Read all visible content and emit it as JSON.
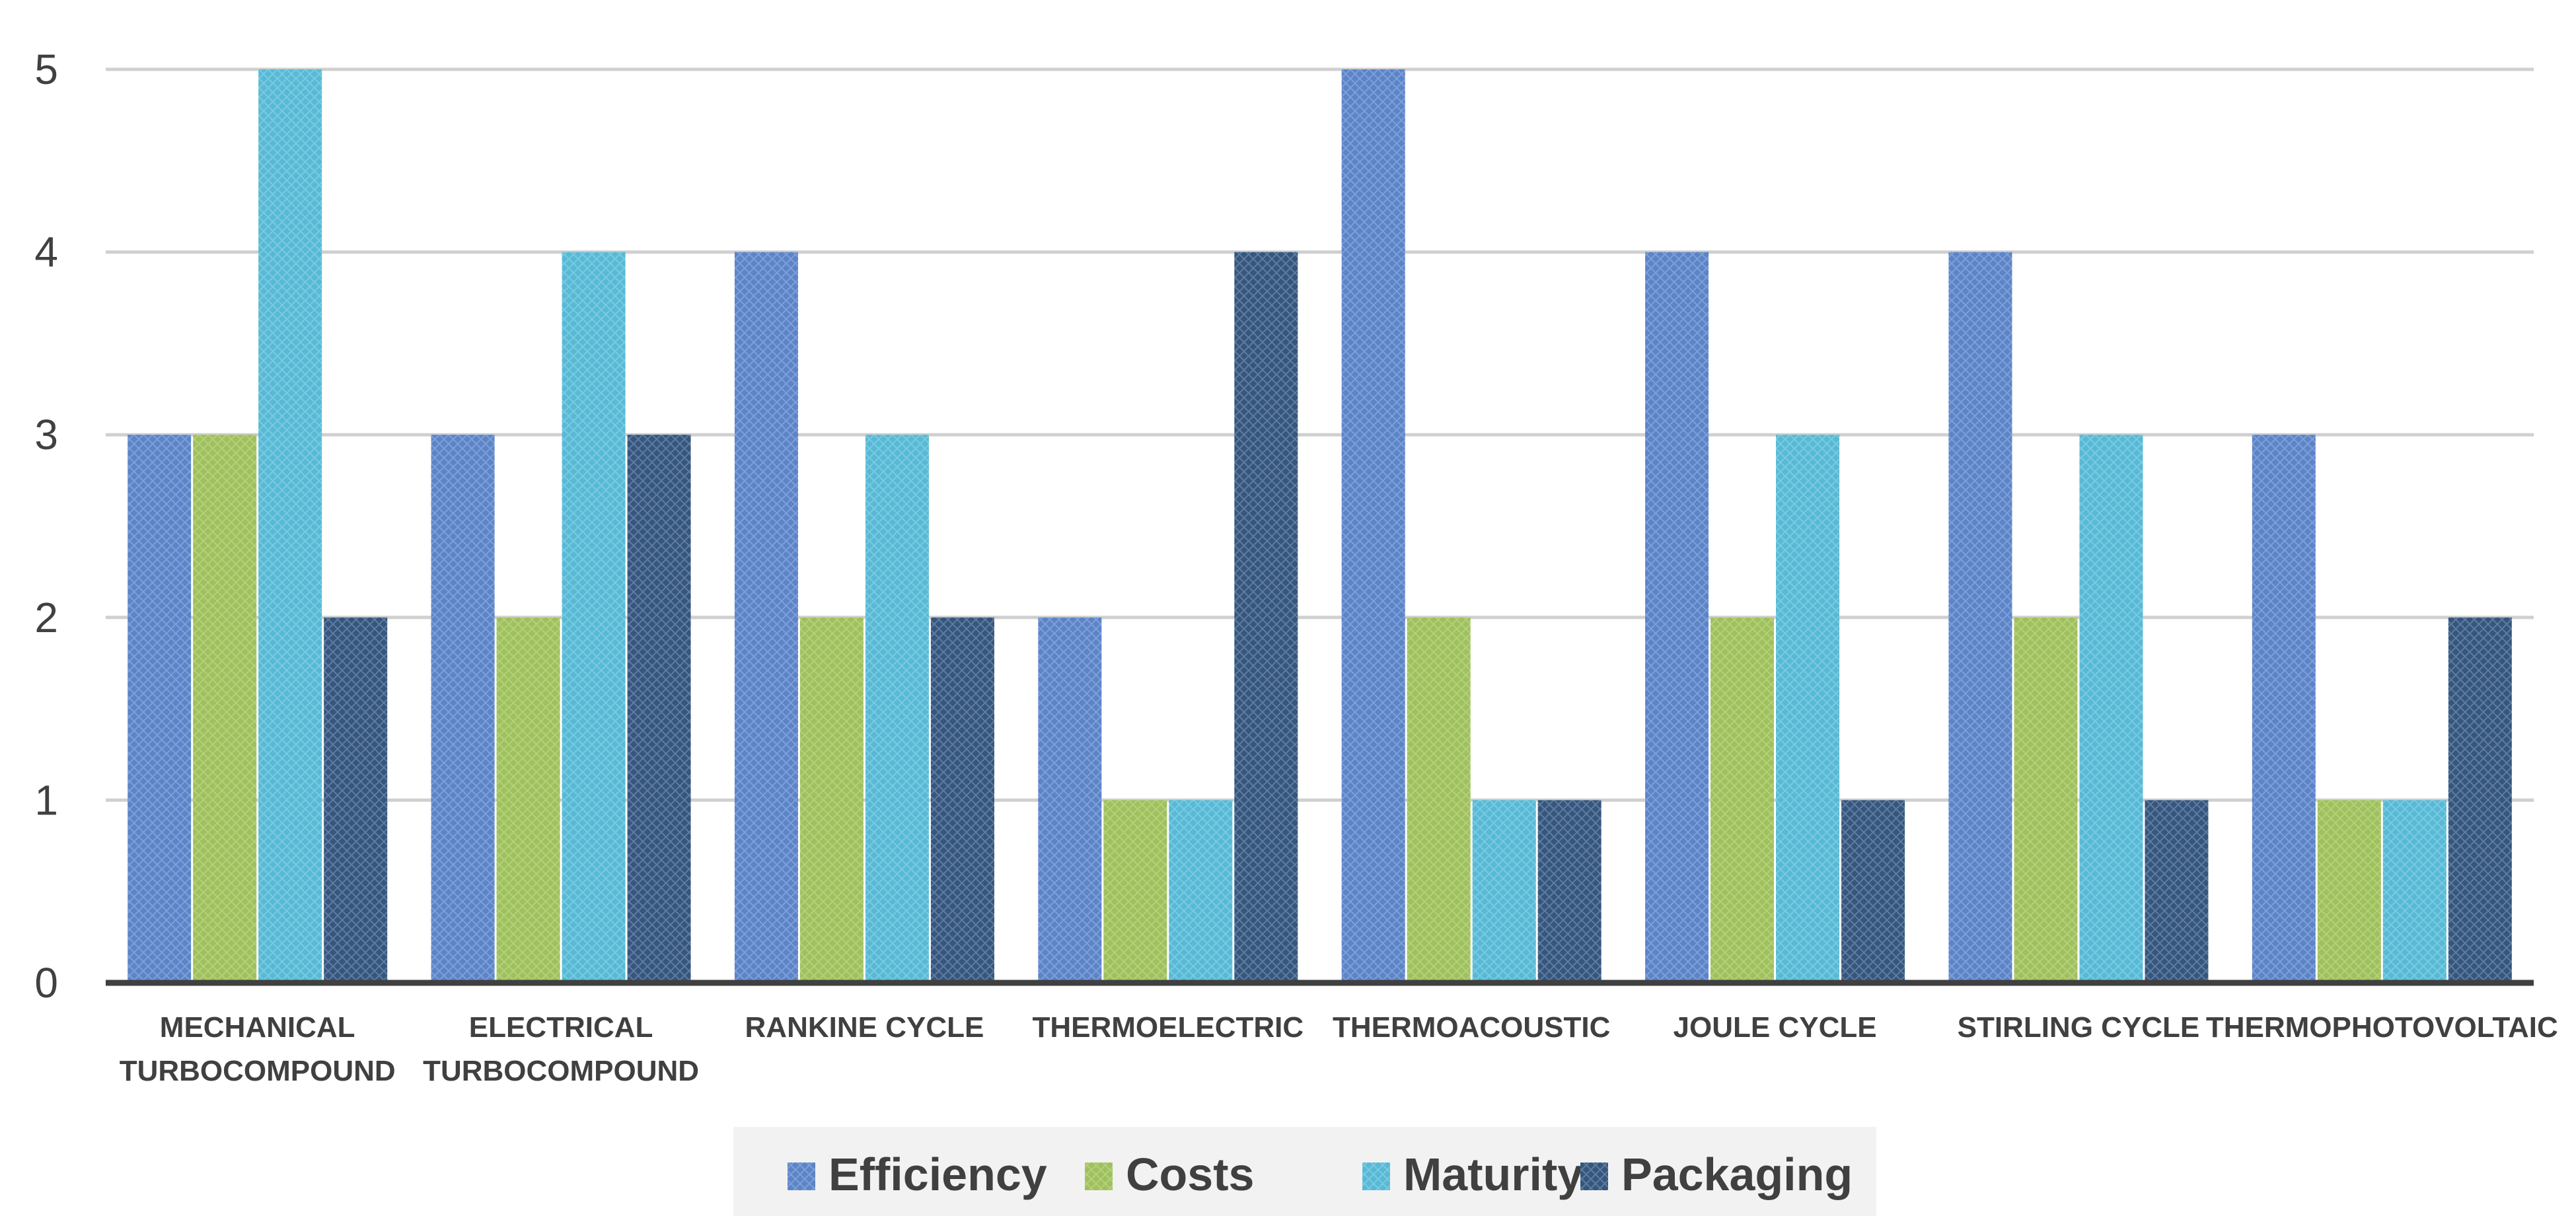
{
  "chart_data": {
    "type": "bar",
    "title": "",
    "xlabel": "",
    "ylabel": "",
    "ylim": [
      0,
      5
    ],
    "yticks": [
      0,
      1,
      2,
      3,
      4,
      5
    ],
    "grid": true,
    "legend_position": "bottom",
    "categories": [
      [
        "MECHANICAL",
        "TURBOCOMPOUND"
      ],
      [
        "ELECTRICAL",
        "TURBOCOMPOUND"
      ],
      [
        "RANKINE CYCLE"
      ],
      [
        "THERMOELECTRIC"
      ],
      [
        "THERMOACOUSTIC"
      ],
      [
        "JOULE CYCLE"
      ],
      [
        "STIRLING CYCLE"
      ],
      [
        "THERMOPHOTOVOLTAIC"
      ]
    ],
    "series": [
      {
        "name": "Efficiency",
        "color": "#5B84C9",
        "values": [
          3,
          3,
          4,
          2,
          5,
          4,
          4,
          3
        ]
      },
      {
        "name": "Costs",
        "color": "#9FC15B",
        "values": [
          3,
          2,
          2,
          1,
          2,
          2,
          2,
          1
        ]
      },
      {
        "name": "Maturity",
        "color": "#56BAD6",
        "values": [
          5,
          4,
          3,
          1,
          1,
          3,
          3,
          1
        ]
      },
      {
        "name": "Packaging",
        "color": "#34567F",
        "values": [
          2,
          3,
          2,
          4,
          1,
          1,
          1,
          2
        ]
      }
    ]
  }
}
